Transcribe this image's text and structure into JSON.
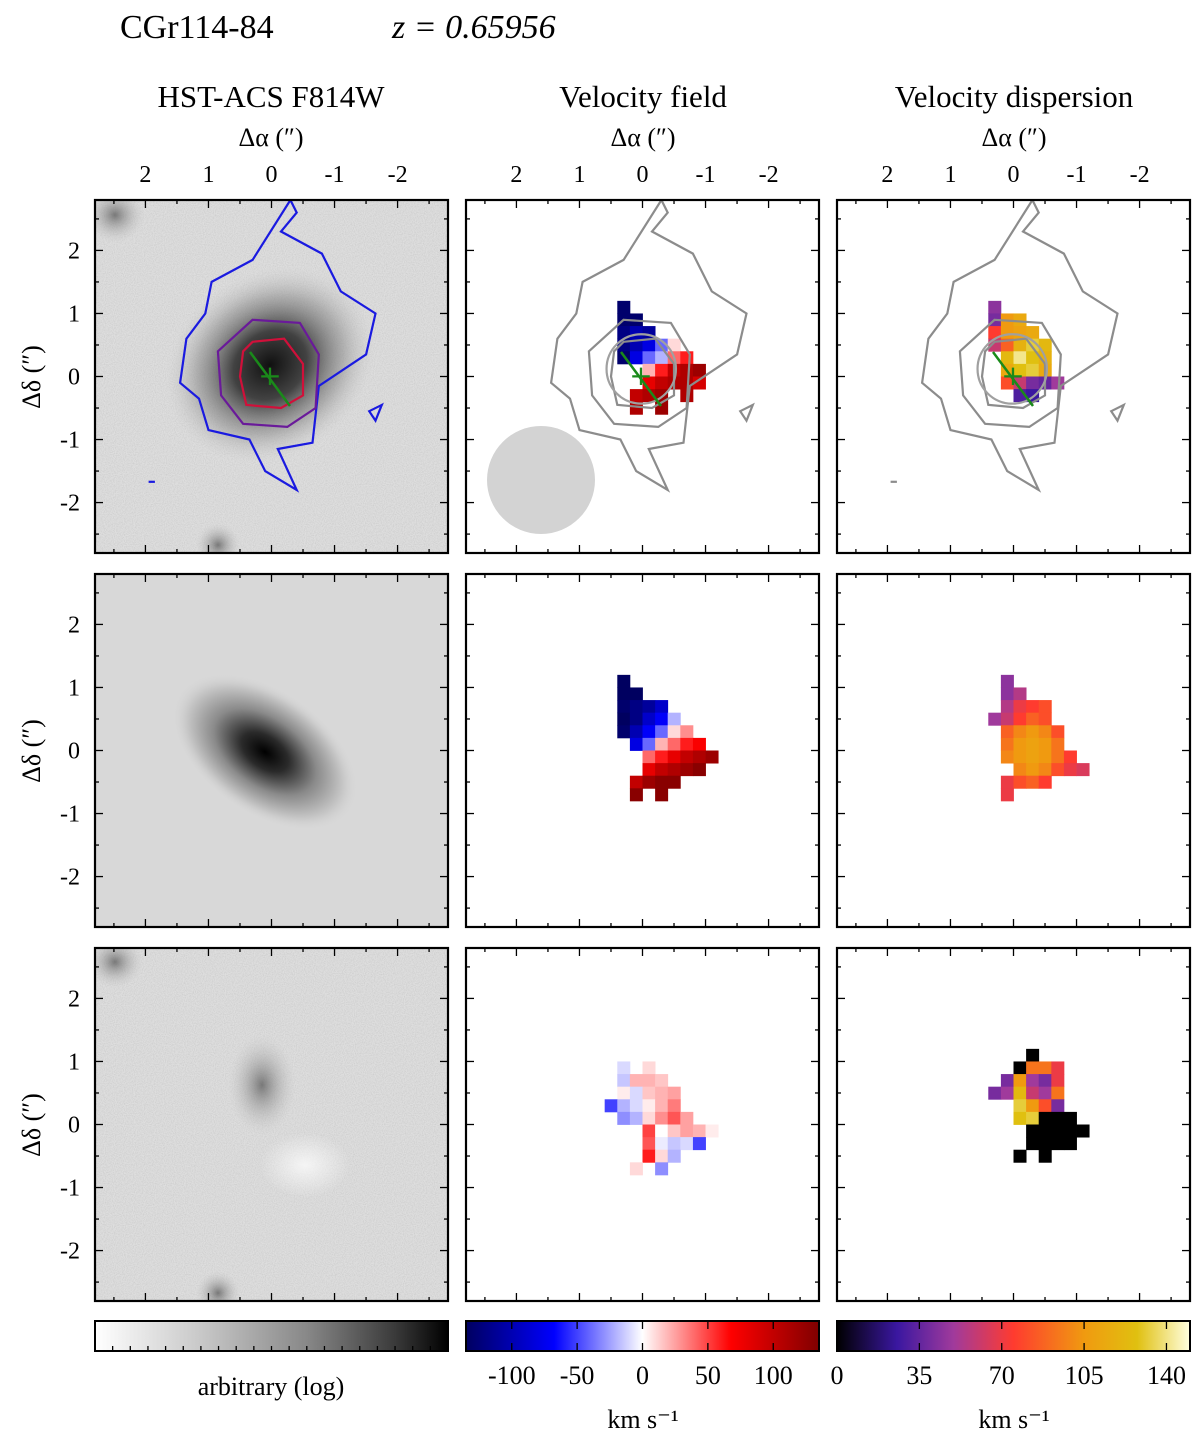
{
  "header": {
    "object_name": "CGr114-84",
    "redshift_label": "z = 0.65956"
  },
  "columns": [
    {
      "title": "HST-ACS F814W",
      "xlabel": "Δα (″)"
    },
    {
      "title": "Velocity field",
      "xlabel": "Δα (″)"
    },
    {
      "title": "Velocity dispersion",
      "xlabel": "Δα (″)"
    }
  ],
  "ylabel": "Δδ (″)",
  "colorbars": [
    {
      "label": "arbitrary (log)",
      "ticks": [],
      "range": [
        0,
        1
      ],
      "colormap": "greys-log"
    },
    {
      "label": "km s⁻¹",
      "ticks": [
        "-100",
        "-50",
        "0",
        "50",
        "100"
      ],
      "tick_values": [
        -100,
        -50,
        0,
        50,
        100
      ],
      "range": [
        -135,
        135
      ],
      "colormap": "seismic",
      "colors": [
        "#000060",
        "#0000ff",
        "#ffffff",
        "#ff0000",
        "#800000"
      ]
    },
    {
      "label": "km s⁻¹",
      "ticks": [
        "0",
        "35",
        "70",
        "105",
        "140"
      ],
      "tick_values": [
        0,
        35,
        70,
        105,
        140
      ],
      "range": [
        0,
        150
      ],
      "colormap": "cmr-ember",
      "colors": [
        "#000000",
        "#3a17a0",
        "#a03a9c",
        "#ff3b2f",
        "#f09a10",
        "#e0c010",
        "#ffffe0"
      ]
    }
  ],
  "chart_data": {
    "type": "heatmap",
    "title": "CGr114-84   z = 0.65956",
    "x_axis": {
      "label": "Δα (″)",
      "ticks": [
        2,
        1,
        0,
        -1,
        -2
      ],
      "range": [
        2.8,
        -2.8
      ]
    },
    "y_axis": {
      "label": "Δδ (″)",
      "ticks": [
        2,
        1,
        0,
        -1,
        -2
      ],
      "range": [
        -2.8,
        2.8
      ]
    },
    "pixel_scale_arcsec": 0.2,
    "grid": false,
    "morphology": {
      "center_arcsec": [
        0,
        0
      ],
      "major_axis_pa_deg": 145,
      "major_axis_half_length_arcsec": 0.55
    },
    "contours_arcsec": {
      "outer": [
        [
          -0.3,
          2.8
        ],
        [
          -0.4,
          2.6
        ],
        [
          -0.15,
          2.3
        ],
        [
          -0.8,
          1.95
        ],
        [
          -1.1,
          1.35
        ],
        [
          -1.65,
          1.0
        ],
        [
          -1.5,
          0.35
        ],
        [
          -0.75,
          -0.15
        ],
        [
          -0.65,
          -1.05
        ],
        [
          -0.1,
          -1.15
        ],
        [
          -0.4,
          -1.8
        ],
        [
          0.1,
          -1.5
        ],
        [
          0.35,
          -1.0
        ],
        [
          1.0,
          -0.85
        ],
        [
          1.15,
          -0.35
        ],
        [
          1.45,
          -0.1
        ],
        [
          1.35,
          0.6
        ],
        [
          1.05,
          1.0
        ],
        [
          0.95,
          1.5
        ],
        [
          0.3,
          1.85
        ]
      ],
      "middle": [
        [
          0.3,
          0.9
        ],
        [
          -0.45,
          0.85
        ],
        [
          -0.75,
          0.35
        ],
        [
          -0.7,
          -0.5
        ],
        [
          -0.25,
          -0.8
        ],
        [
          0.45,
          -0.75
        ],
        [
          0.8,
          -0.3
        ],
        [
          0.85,
          0.4
        ]
      ],
      "inner": [
        [
          0.3,
          0.55
        ],
        [
          -0.2,
          0.6
        ],
        [
          -0.5,
          0.2
        ],
        [
          -0.5,
          -0.3
        ],
        [
          -0.15,
          -0.5
        ],
        [
          0.4,
          -0.45
        ],
        [
          0.5,
          0.0
        ],
        [
          0.45,
          0.4
        ]
      ],
      "small_blob": [
        [
          -1.55,
          -0.55
        ],
        [
          -1.75,
          -0.45
        ],
        [
          -1.65,
          -0.7
        ]
      ],
      "bottom_left_dash": [
        [
          1.95,
          -1.67
        ],
        [
          1.85,
          -1.67
        ]
      ]
    },
    "psf_fwhm_arcsec": 1.7,
    "psf_center_arcsec": [
      1.6,
      -1.65
    ],
    "velocity_field_observed": {
      "name": "observed",
      "units": "km s⁻¹",
      "x0": 0.4,
      "y0": 1.2,
      "rows": [
        [
          -130,
          null,
          null,
          null,
          null,
          null,
          null
        ],
        [
          -130,
          -130,
          null,
          null,
          null,
          null,
          null
        ],
        [
          -120,
          -100,
          -110,
          null,
          null,
          null,
          null
        ],
        [
          -120,
          -100,
          -80,
          -40,
          10,
          null,
          null
        ],
        [
          -130,
          -80,
          -40,
          -20,
          40,
          60,
          null
        ],
        [
          null,
          null,
          20,
          60,
          100,
          110,
          120
        ],
        [
          null,
          null,
          80,
          100,
          110,
          110,
          90
        ],
        [
          null,
          100,
          110,
          120,
          null,
          110,
          null
        ],
        [
          null,
          110,
          null,
          120,
          null,
          null,
          null
        ]
      ]
    },
    "velocity_field_model": {
      "name": "model",
      "units": "km s⁻¹",
      "x0": 0.4,
      "y0": 1.2,
      "rows": [
        [
          -140,
          null,
          null,
          null,
          null,
          null,
          null,
          null
        ],
        [
          -140,
          -140,
          null,
          null,
          null,
          null,
          null,
          null
        ],
        [
          -130,
          -120,
          -110,
          -90,
          null,
          null,
          null,
          null
        ],
        [
          -140,
          -120,
          -90,
          -70,
          -20,
          null,
          null,
          null
        ],
        [
          -130,
          -100,
          -70,
          -40,
          10,
          30,
          null,
          null
        ],
        [
          null,
          -80,
          -40,
          20,
          40,
          60,
          70,
          null
        ],
        [
          null,
          null,
          40,
          60,
          80,
          100,
          110,
          120
        ],
        [
          null,
          null,
          80,
          100,
          110,
          120,
          130,
          null
        ],
        [
          null,
          100,
          120,
          130,
          130,
          null,
          null,
          null
        ],
        [
          null,
          130,
          null,
          130,
          null,
          null,
          null,
          null
        ]
      ]
    },
    "velocity_field_residual": {
      "name": "residual",
      "units": "km s⁻¹",
      "x0": 0.6,
      "y0": 1.2,
      "rows": [
        [
          null,
          0,
          null,
          null,
          null,
          null,
          null,
          null
        ],
        [
          null,
          -10,
          null,
          10,
          null,
          null,
          null,
          null
        ],
        [
          null,
          -15,
          20,
          20,
          15,
          null,
          null,
          null
        ],
        [
          null,
          5,
          -10,
          15,
          20,
          25,
          null,
          null
        ],
        [
          -50,
          -20,
          -10,
          5,
          20,
          35,
          null,
          null
        ],
        [
          null,
          -30,
          -20,
          10,
          30,
          45,
          25,
          null
        ],
        [
          null,
          null,
          null,
          50,
          0,
          15,
          25,
          20,
          5
        ],
        [
          null,
          null,
          null,
          45,
          -5,
          -15,
          -10,
          -50
        ],
        [
          null,
          null,
          null,
          60,
          10,
          -20,
          null,
          null
        ],
        [
          null,
          null,
          10,
          null,
          -30,
          null,
          null,
          null
        ]
      ]
    },
    "velocity_dispersion_observed": {
      "name": "observed",
      "units": "km s⁻¹",
      "x0": 0.4,
      "y0": 1.2,
      "rows": [
        [
          45,
          null,
          null,
          null,
          null,
          null,
          null
        ],
        [
          40,
          100,
          110,
          null,
          null,
          null,
          null
        ],
        [
          75,
          100,
          105,
          110,
          null,
          null,
          null
        ],
        [
          60,
          85,
          115,
          130,
          120,
          null,
          null
        ],
        [
          null,
          120,
          140,
          125,
          115,
          null,
          null
        ],
        [
          null,
          110,
          125,
          130,
          110,
          null,
          null
        ],
        [
          null,
          80,
          60,
          40,
          35,
          50,
          null
        ],
        [
          null,
          null,
          30,
          25,
          null,
          null,
          null
        ]
      ]
    },
    "velocity_dispersion_model": {
      "name": "model",
      "units": "km s⁻¹",
      "x0": 0.4,
      "y0": 1.2,
      "rows": [
        [
          null,
          45,
          null,
          null,
          null,
          null,
          null,
          null
        ],
        [
          null,
          45,
          55,
          null,
          null,
          null,
          null,
          null
        ],
        [
          null,
          55,
          70,
          75,
          80,
          null,
          null,
          null
        ],
        [
          50,
          60,
          75,
          85,
          80,
          null,
          null,
          null
        ],
        [
          null,
          85,
          95,
          100,
          95,
          80,
          null,
          null
        ],
        [
          null,
          90,
          100,
          105,
          100,
          90,
          null,
          null
        ],
        [
          null,
          95,
          100,
          105,
          100,
          90,
          75,
          null
        ],
        [
          null,
          null,
          95,
          100,
          95,
          80,
          70,
          65
        ],
        [
          null,
          70,
          80,
          85,
          75,
          null,
          null,
          null
        ],
        [
          null,
          70,
          null,
          null,
          null,
          null,
          null,
          null
        ]
      ]
    },
    "velocity_dispersion_residual": {
      "name": "residual",
      "units": "km s⁻¹",
      "x0": 0.4,
      "y0": 1.2,
      "rows": [
        [
          null,
          null,
          null,
          0,
          null,
          null,
          null,
          null
        ],
        [
          null,
          null,
          0,
          90,
          90,
          70,
          null,
          null
        ],
        [
          null,
          40,
          100,
          50,
          40,
          70,
          null,
          null
        ],
        [
          40,
          50,
          120,
          60,
          50,
          90,
          null,
          null
        ],
        [
          null,
          null,
          130,
          100,
          80,
          40,
          null,
          null
        ],
        [
          null,
          null,
          125,
          130,
          0,
          0,
          0,
          null
        ],
        [
          null,
          null,
          null,
          0,
          0,
          0,
          0,
          0
        ],
        [
          null,
          null,
          null,
          0,
          0,
          0,
          0,
          null
        ],
        [
          null,
          null,
          0,
          null,
          0,
          null,
          null,
          null
        ]
      ]
    }
  }
}
